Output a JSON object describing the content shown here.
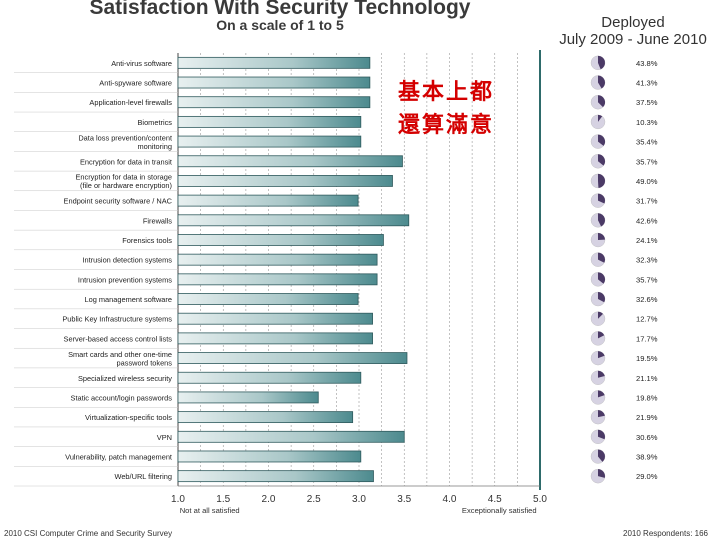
{
  "chart_data": {
    "type": "bar",
    "orientation": "horizontal",
    "title": "Satisfaction With Security Technology",
    "subtitle": "On a scale of 1 to 5",
    "xlim": [
      1.0,
      5.0
    ],
    "xticks": [
      "1.0",
      "1.5",
      "2.0",
      "2.5",
      "3.0",
      "3.5",
      "4.0",
      "4.5",
      "5.0"
    ],
    "xlabel_low": "Not at all satisfied",
    "xlabel_high": "Exceptionally satisfied",
    "deployed_title": [
      "Deployed",
      "July 2009 - June 2010"
    ],
    "categories": [
      "Anti-virus software",
      "Anti-spyware software",
      "Application-level firewalls",
      "Biometrics",
      "Data loss prevention/content monitoring",
      "Encryption for data in transit",
      "Encryption for data in storage (file or hardware encryption)",
      "Endpoint security software / NAC",
      "Firewalls",
      "Forensics tools",
      "Intrusion detection systems",
      "Intrusion prevention systems",
      "Log management software",
      "Public Key Infrastructure systems",
      "Server-based access control lists",
      "Smart cards and other one-time password tokens",
      "Specialized wireless security",
      "Static account/login passwords",
      "Virtualization-specific tools",
      "VPN",
      "Vulnerability, patch management",
      "Web/URL filtering"
    ],
    "values": [
      3.12,
      3.12,
      3.12,
      3.02,
      3.02,
      3.48,
      3.37,
      2.99,
      3.55,
      3.27,
      3.2,
      3.2,
      2.99,
      3.15,
      3.15,
      3.53,
      3.02,
      2.55,
      2.93,
      3.5,
      3.02,
      3.16
    ],
    "deployed_pct": [
      "43.8%",
      "41.3%",
      "37.5%",
      "10.3%",
      "35.4%",
      "35.7%",
      "49.0%",
      "31.7%",
      "42.6%",
      "24.1%",
      "32.3%",
      "35.7%",
      "32.6%",
      "12.7%",
      "17.7%",
      "19.5%",
      "21.1%",
      "19.8%",
      "21.9%",
      "30.6%",
      "38.9%",
      "29.0%"
    ]
  },
  "annotation": [
    "基本上都",
    "還算滿意"
  ],
  "footer": {
    "source": "2010 CSI Computer Crime and Security Survey",
    "respondents": "2010 Respondents: 166"
  },
  "colors": {
    "bar_light": "#e8f0f0",
    "bar_dark": "#4c8a8e",
    "bar_stroke": "#2f5a5d",
    "pie_fill": "#4b3a66",
    "pie_bg": "#d6d2e2",
    "divider": "#2e6b6b",
    "annotation": "#d40000"
  }
}
